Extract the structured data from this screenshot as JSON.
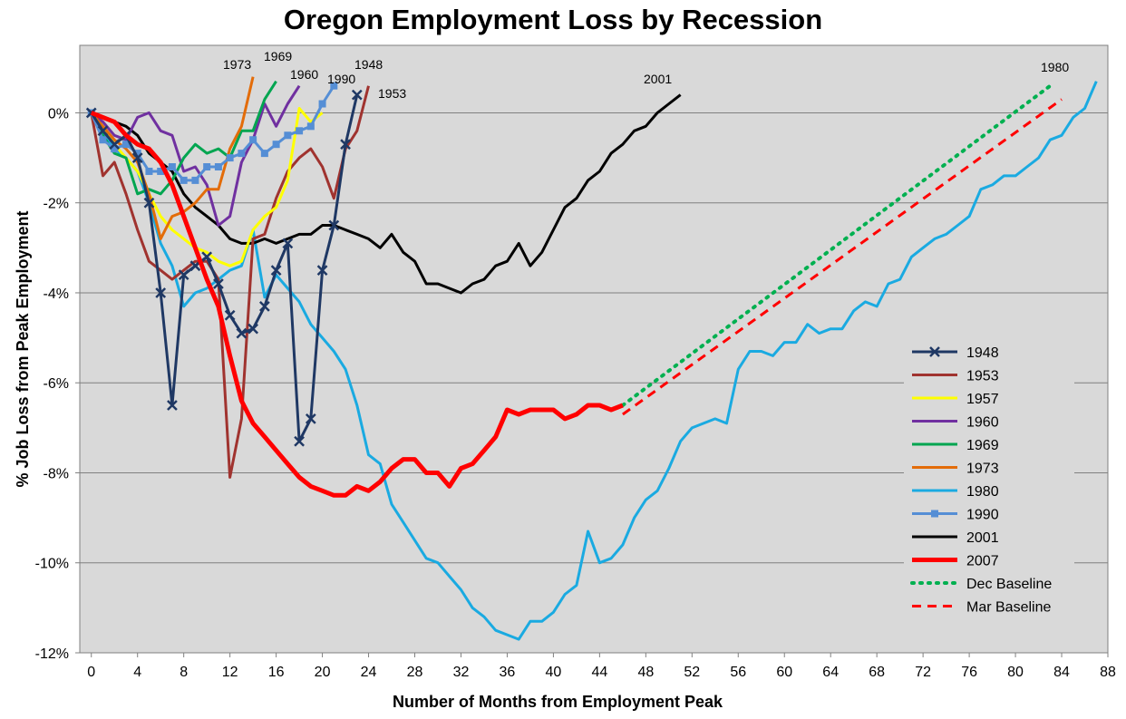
{
  "chart_data": {
    "type": "line",
    "title": "Oregon Employment Loss by Recession",
    "xlabel": "Number of Months from Employment Peak",
    "ylabel": "% Job Loss from Peak Employment",
    "xlim": [
      -1,
      88
    ],
    "ylim": [
      -12,
      1.5
    ],
    "x_ticks": [
      0,
      4,
      8,
      12,
      16,
      20,
      24,
      28,
      32,
      36,
      40,
      44,
      48,
      52,
      56,
      60,
      64,
      68,
      72,
      76,
      80,
      84,
      88
    ],
    "x_tick_labels": [
      "0",
      "4",
      "8",
      "12",
      "16",
      "20",
      "24",
      "28",
      "32",
      "36",
      "40",
      "44",
      "48",
      "52",
      "56",
      "60",
      "64",
      "68",
      "72",
      "76",
      "80",
      "84",
      "88"
    ],
    "y_ticks": [
      0,
      -2,
      -4,
      -6,
      -8,
      -10,
      -12
    ],
    "y_tick_labels": [
      "0%",
      "-2%",
      "-4%",
      "-6%",
      "-8%",
      "-10%",
      "-12%"
    ],
    "grid": "horizontal",
    "legend_position": "right",
    "series": [
      {
        "name": "1948",
        "color": "#1f3864",
        "width": 3,
        "dash": "",
        "marker": "x",
        "label": "1948",
        "x": [
          0,
          1,
          2,
          3,
          4,
          5,
          6,
          7,
          8,
          9,
          10,
          11,
          12,
          13,
          14,
          15,
          16,
          17,
          18,
          19,
          20,
          21,
          22,
          23
        ],
        "y": [
          0,
          -0.4,
          -0.7,
          -0.5,
          -1.0,
          -2.0,
          -4.0,
          -6.5,
          -3.6,
          -3.4,
          -3.2,
          -3.8,
          -4.5,
          -4.9,
          -4.8,
          -4.3,
          -3.5,
          -2.9,
          -7.3,
          -6.8,
          -3.5,
          -2.5,
          -0.7,
          0.4
        ]
      },
      {
        "name": "1953",
        "color": "#a0332f",
        "width": 3,
        "dash": "",
        "marker": "",
        "label": "1953",
        "x": [
          0,
          1,
          2,
          3,
          4,
          5,
          6,
          7,
          8,
          9,
          10,
          11,
          12,
          13,
          14,
          15,
          16,
          17,
          18,
          19,
          20,
          21,
          22,
          23,
          24
        ],
        "y": [
          0,
          -1.4,
          -1.1,
          -1.8,
          -2.6,
          -3.3,
          -3.5,
          -3.7,
          -3.5,
          -3.3,
          -3.3,
          -3.7,
          -8.1,
          -6.8,
          -2.8,
          -2.7,
          -1.9,
          -1.3,
          -1.0,
          -0.8,
          -1.2,
          -1.9,
          -0.8,
          -0.4,
          0.6
        ]
      },
      {
        "name": "1957",
        "color": "#ffff00",
        "width": 3,
        "dash": "",
        "marker": "",
        "label": "",
        "x": [
          0,
          1,
          2,
          3,
          4,
          5,
          6,
          7,
          8,
          9,
          10,
          11,
          12,
          13,
          14,
          15,
          16,
          17,
          18,
          19,
          20
        ],
        "y": [
          0,
          -0.3,
          -0.7,
          -1.0,
          -1.3,
          -1.8,
          -2.3,
          -2.6,
          -2.8,
          -3.0,
          -3.1,
          -3.3,
          -3.4,
          -3.3,
          -2.6,
          -2.3,
          -2.1,
          -1.5,
          0.1,
          -0.2,
          0.0
        ]
      },
      {
        "name": "1960",
        "color": "#7030a0",
        "width": 3,
        "dash": "",
        "marker": "",
        "label": "1960",
        "x": [
          0,
          1,
          2,
          3,
          4,
          5,
          6,
          7,
          8,
          9,
          10,
          11,
          12,
          13,
          14,
          15,
          16,
          17,
          18
        ],
        "y": [
          0,
          -0.2,
          -0.5,
          -0.6,
          -0.1,
          0.0,
          -0.4,
          -0.5,
          -1.3,
          -1.2,
          -1.6,
          -2.5,
          -2.3,
          -1.1,
          -0.6,
          0.2,
          -0.3,
          0.2,
          0.6
        ]
      },
      {
        "name": "1969",
        "color": "#00a550",
        "width": 3,
        "dash": "",
        "marker": "",
        "label": "1969",
        "x": [
          0,
          1,
          2,
          3,
          4,
          5,
          6,
          7,
          8,
          9,
          10,
          11,
          12,
          13,
          14,
          15,
          16
        ],
        "y": [
          0,
          -0.5,
          -0.9,
          -1.0,
          -1.8,
          -1.7,
          -1.8,
          -1.5,
          -1.0,
          -0.7,
          -0.9,
          -0.8,
          -1.0,
          -0.4,
          -0.4,
          0.3,
          0.7
        ]
      },
      {
        "name": "1973",
        "color": "#e36c09",
        "width": 3,
        "dash": "",
        "marker": "",
        "label": "1973",
        "x": [
          0,
          1,
          2,
          3,
          4,
          5,
          6,
          7,
          8,
          9,
          10,
          11,
          12,
          13,
          14
        ],
        "y": [
          0,
          -0.3,
          -0.6,
          -0.8,
          -1.1,
          -1.8,
          -2.8,
          -2.3,
          -2.2,
          -2.0,
          -1.7,
          -1.7,
          -0.8,
          -0.3,
          0.8
        ]
      },
      {
        "name": "1980",
        "color": "#1aaae1",
        "width": 3,
        "dash": "",
        "marker": "",
        "label": "1980",
        "x": [
          0,
          1,
          2,
          3,
          4,
          5,
          6,
          7,
          8,
          9,
          10,
          11,
          12,
          13,
          14,
          15,
          16,
          17,
          18,
          19,
          20,
          21,
          22,
          23,
          24,
          25,
          26,
          27,
          28,
          29,
          30,
          31,
          32,
          33,
          34,
          35,
          36,
          37,
          38,
          39,
          40,
          41,
          42,
          43,
          44,
          45,
          46,
          47,
          48,
          49,
          50,
          51,
          52,
          53,
          54,
          55,
          56,
          57,
          58,
          59,
          60,
          61,
          62,
          63,
          64,
          65,
          66,
          67,
          68,
          69,
          70,
          71,
          72,
          73,
          74,
          75,
          76,
          77,
          78,
          79,
          80,
          81,
          82,
          83,
          84,
          85,
          86,
          87
        ],
        "y": [
          0,
          -0.4,
          -0.8,
          -1.0,
          -1.3,
          -2.0,
          -2.9,
          -3.4,
          -4.3,
          -4.0,
          -3.9,
          -3.7,
          -3.5,
          -3.4,
          -2.6,
          -4.1,
          -3.6,
          -3.9,
          -4.2,
          -4.7,
          -5.0,
          -5.3,
          -5.7,
          -6.5,
          -7.6,
          -7.8,
          -8.7,
          -9.1,
          -9.5,
          -9.9,
          -10.0,
          -10.3,
          -10.6,
          -11.0,
          -11.2,
          -11.5,
          -11.6,
          -11.7,
          -11.3,
          -11.3,
          -11.1,
          -10.7,
          -10.5,
          -9.3,
          -10.0,
          -9.9,
          -9.6,
          -9.0,
          -8.6,
          -8.4,
          -7.9,
          -7.3,
          -7.0,
          -6.9,
          -6.8,
          -6.9,
          -5.7,
          -5.3,
          -5.3,
          -5.4,
          -5.1,
          -5.1,
          -4.7,
          -4.9,
          -4.8,
          -4.8,
          -4.4,
          -4.2,
          -4.3,
          -3.8,
          -3.7,
          -3.2,
          -3.0,
          -2.8,
          -2.7,
          -2.5,
          -2.3,
          -1.7,
          -1.6,
          -1.4,
          -1.4,
          -1.2,
          -1.0,
          -0.6,
          -0.5,
          -0.1,
          0.1,
          0.7
        ]
      },
      {
        "name": "1990",
        "color": "#558ed5",
        "width": 3,
        "dash": "",
        "marker": "square",
        "label": "1990",
        "x": [
          0,
          1,
          2,
          3,
          4,
          5,
          6,
          7,
          8,
          9,
          10,
          11,
          12,
          13,
          14,
          15,
          16,
          17,
          18,
          19,
          20,
          21
        ],
        "y": [
          0,
          -0.6,
          -0.8,
          -0.7,
          -0.9,
          -1.3,
          -1.3,
          -1.2,
          -1.5,
          -1.5,
          -1.2,
          -1.2,
          -1.0,
          -0.9,
          -0.6,
          -0.9,
          -0.7,
          -0.5,
          -0.4,
          -0.3,
          0.2,
          0.6
        ]
      },
      {
        "name": "2001",
        "color": "#000000",
        "width": 3,
        "dash": "",
        "marker": "",
        "label": "2001",
        "x": [
          0,
          1,
          2,
          3,
          4,
          5,
          6,
          7,
          8,
          9,
          10,
          11,
          12,
          13,
          14,
          15,
          16,
          17,
          18,
          19,
          20,
          21,
          22,
          23,
          24,
          25,
          26,
          27,
          28,
          29,
          30,
          31,
          32,
          33,
          34,
          35,
          36,
          37,
          38,
          39,
          40,
          41,
          42,
          43,
          44,
          45,
          46,
          47,
          48,
          49,
          50,
          51
        ],
        "y": [
          0,
          -0.1,
          -0.2,
          -0.3,
          -0.5,
          -0.9,
          -1.1,
          -1.3,
          -1.8,
          -2.1,
          -2.3,
          -2.5,
          -2.8,
          -2.9,
          -2.9,
          -2.8,
          -2.9,
          -2.8,
          -2.7,
          -2.7,
          -2.5,
          -2.5,
          -2.6,
          -2.7,
          -2.8,
          -3.0,
          -2.7,
          -3.1,
          -3.3,
          -3.8,
          -3.8,
          -3.9,
          -4.0,
          -3.8,
          -3.7,
          -3.4,
          -3.3,
          -2.9,
          -3.4,
          -3.1,
          -2.6,
          -2.1,
          -1.9,
          -1.5,
          -1.3,
          -0.9,
          -0.7,
          -0.4,
          -0.3,
          0.0,
          0.2,
          0.4
        ]
      },
      {
        "name": "2007",
        "color": "#ff0000",
        "width": 5,
        "dash": "",
        "marker": "",
        "label": "",
        "x": [
          0,
          1,
          2,
          3,
          4,
          5,
          6,
          7,
          8,
          9,
          10,
          11,
          12,
          13,
          14,
          15,
          16,
          17,
          18,
          19,
          20,
          21,
          22,
          23,
          24,
          25,
          26,
          27,
          28,
          29,
          30,
          31,
          32,
          33,
          34,
          35,
          36,
          37,
          38,
          39,
          40,
          41,
          42,
          43,
          44,
          45,
          46
        ],
        "y": [
          0,
          -0.1,
          -0.2,
          -0.5,
          -0.7,
          -0.8,
          -1.1,
          -1.6,
          -2.3,
          -3.0,
          -3.7,
          -4.3,
          -5.4,
          -6.4,
          -6.9,
          -7.2,
          -7.5,
          -7.8,
          -8.1,
          -8.3,
          -8.4,
          -8.5,
          -8.5,
          -8.3,
          -8.4,
          -8.2,
          -7.9,
          -7.7,
          -7.7,
          -8.0,
          -8.0,
          -8.3,
          -7.9,
          -7.8,
          -7.5,
          -7.2,
          -6.6,
          -6.7,
          -6.6,
          -6.6,
          -6.6,
          -6.8,
          -6.7,
          -6.5,
          -6.5,
          -6.6,
          -6.5
        ]
      },
      {
        "name": "Dec Baseline",
        "color": "#00b050",
        "width": 4,
        "dash": "2 7",
        "marker": "",
        "label": "",
        "x": [
          46,
          83
        ],
        "y": [
          -6.5,
          0.6
        ]
      },
      {
        "name": "Mar Baseline",
        "color": "#ff0000",
        "width": 3,
        "dash": "10 7",
        "marker": "",
        "label": "",
        "x": [
          46,
          84
        ],
        "y": [
          -6.7,
          0.3
        ]
      }
    ],
    "legend": [
      "1948",
      "1953",
      "1957",
      "1960",
      "1969",
      "1973",
      "1980",
      "1990",
      "2001",
      "2007",
      "Dec Baseline",
      "Mar Baseline"
    ]
  }
}
